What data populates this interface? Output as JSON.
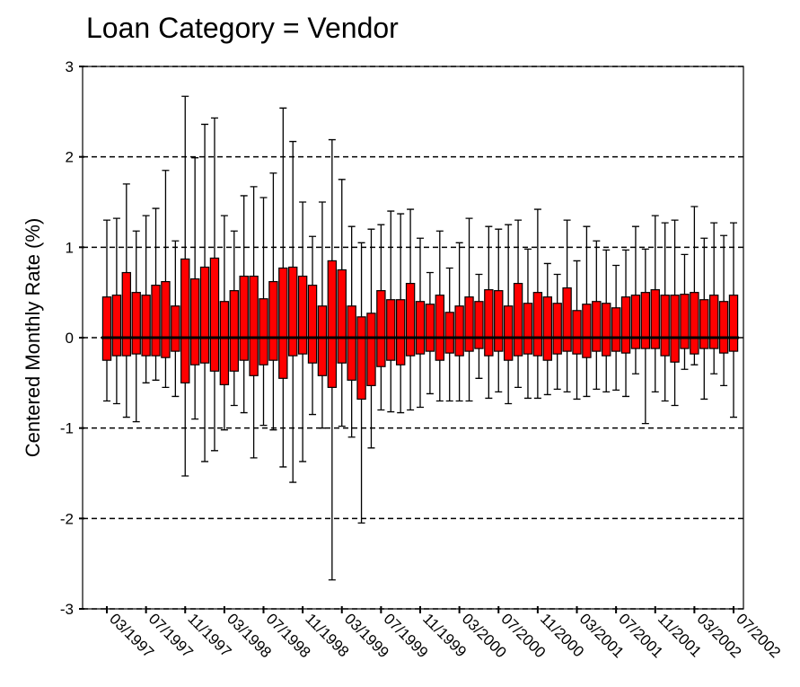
{
  "chart_data": {
    "type": "box",
    "title": "Loan Category = Vendor",
    "y_label": "Centered Monthly Rate (%)",
    "categories": [
      "03/1997",
      null,
      null,
      null,
      "07/1997",
      null,
      null,
      null,
      "11/1997",
      null,
      null,
      null,
      "03/1998",
      null,
      null,
      null,
      "07/1998",
      null,
      null,
      null,
      "11/1998",
      null,
      null,
      null,
      "03/1999",
      null,
      null,
      null,
      "07/1999",
      null,
      null,
      null,
      "11/1999",
      null,
      null,
      null,
      "03/2000",
      null,
      null,
      null,
      "07/2000",
      null,
      null,
      null,
      "11/2000",
      null,
      null,
      null,
      "03/2001",
      null,
      null,
      null,
      "07/2001",
      null,
      null,
      null,
      "11/2001",
      null,
      null,
      null,
      "03/2002",
      null,
      null,
      null,
      "07/2002"
    ],
    "color": "#ff0000",
    "whisker_high": [
      1.3,
      1.32,
      1.7,
      1.18,
      1.35,
      1.43,
      1.85,
      1.07,
      2.67,
      1.99,
      2.36,
      2.43,
      1.35,
      1.18,
      1.57,
      1.67,
      1.55,
      1.82,
      2.54,
      2.17,
      1.5,
      1.12,
      1.5,
      2.19,
      1.75,
      1.23,
      1.05,
      1.2,
      1.25,
      1.4,
      1.37,
      1.42,
      1.1,
      0.72,
      1.18,
      0.77,
      1.05,
      1.32,
      0.7,
      1.23,
      1.2,
      1.25,
      1.3,
      0.98,
      1.42,
      0.82,
      0.7,
      1.3,
      0.85,
      1.23,
      1.07,
      0.97,
      0.8,
      0.97,
      1.23,
      0.98,
      1.35,
      1.27,
      1.3,
      0.92,
      1.45,
      1.1,
      1.27,
      1.13,
      1.27
    ],
    "q3": [
      0.45,
      0.47,
      0.72,
      0.5,
      0.47,
      0.58,
      0.62,
      0.35,
      0.87,
      0.65,
      0.78,
      0.88,
      0.4,
      0.52,
      0.68,
      0.68,
      0.43,
      0.62,
      0.77,
      0.78,
      0.68,
      0.58,
      0.35,
      0.85,
      0.75,
      0.35,
      0.23,
      0.27,
      0.52,
      0.42,
      0.42,
      0.6,
      0.4,
      0.37,
      0.47,
      0.28,
      0.35,
      0.45,
      0.4,
      0.53,
      0.52,
      0.35,
      0.6,
      0.38,
      0.5,
      0.45,
      0.38,
      0.55,
      0.3,
      0.37,
      0.4,
      0.38,
      0.33,
      0.45,
      0.47,
      0.5,
      0.53,
      0.47,
      0.47,
      0.48,
      0.5,
      0.42,
      0.47,
      0.4,
      0.47
    ],
    "median": [
      0,
      0,
      0,
      0,
      0,
      0,
      0,
      0,
      0,
      0,
      0,
      0,
      0,
      0,
      0,
      0,
      0,
      0,
      0,
      0,
      0,
      0,
      0,
      0,
      0,
      0,
      0,
      0,
      0,
      0,
      0,
      0,
      0,
      0,
      0,
      0,
      0,
      0,
      0,
      0,
      0,
      0,
      0,
      0,
      0,
      0,
      0,
      0,
      0,
      0,
      0,
      0,
      0,
      0,
      0,
      0,
      0,
      0,
      0,
      0,
      0,
      0,
      0,
      0,
      0
    ],
    "q1": [
      -0.25,
      -0.2,
      -0.2,
      -0.18,
      -0.2,
      -0.2,
      -0.22,
      -0.15,
      -0.5,
      -0.3,
      -0.28,
      -0.37,
      -0.52,
      -0.37,
      -0.25,
      -0.42,
      -0.3,
      -0.25,
      -0.45,
      -0.2,
      -0.18,
      -0.28,
      -0.42,
      -0.55,
      -0.28,
      -0.47,
      -0.68,
      -0.53,
      -0.32,
      -0.25,
      -0.3,
      -0.2,
      -0.18,
      -0.15,
      -0.25,
      -0.17,
      -0.2,
      -0.15,
      -0.12,
      -0.2,
      -0.15,
      -0.25,
      -0.2,
      -0.18,
      -0.2,
      -0.25,
      -0.18,
      -0.15,
      -0.18,
      -0.22,
      -0.15,
      -0.2,
      -0.15,
      -0.17,
      -0.12,
      -0.12,
      -0.12,
      -0.2,
      -0.27,
      -0.12,
      -0.18,
      -0.12,
      -0.12,
      -0.17,
      -0.15
    ],
    "whisker_low": [
      -0.7,
      -0.73,
      -0.88,
      -0.93,
      -0.5,
      -0.47,
      -0.55,
      -0.65,
      -1.53,
      -0.9,
      -1.37,
      -1.25,
      -1.02,
      -0.75,
      -0.83,
      -1.33,
      -0.97,
      -1.02,
      -1.43,
      -1.6,
      -1.37,
      -0.85,
      -1.0,
      -2.68,
      -0.98,
      -1.1,
      -2.05,
      -1.22,
      -0.8,
      -0.82,
      -0.83,
      -0.8,
      -0.77,
      -0.62,
      -0.7,
      -0.7,
      -0.7,
      -0.7,
      -0.45,
      -0.67,
      -0.6,
      -0.73,
      -0.55,
      -0.67,
      -0.67,
      -0.63,
      -0.57,
      -0.6,
      -0.68,
      -0.65,
      -0.57,
      -0.6,
      -0.58,
      -0.65,
      -0.4,
      -0.95,
      -0.6,
      -0.7,
      -0.75,
      -0.35,
      -0.3,
      -0.68,
      -0.4,
      -0.53,
      -0.88
    ],
    "ylim": [
      -3,
      3
    ],
    "yticks": [
      -3,
      -2,
      -1,
      0,
      1,
      2,
      3
    ],
    "grid": true
  }
}
